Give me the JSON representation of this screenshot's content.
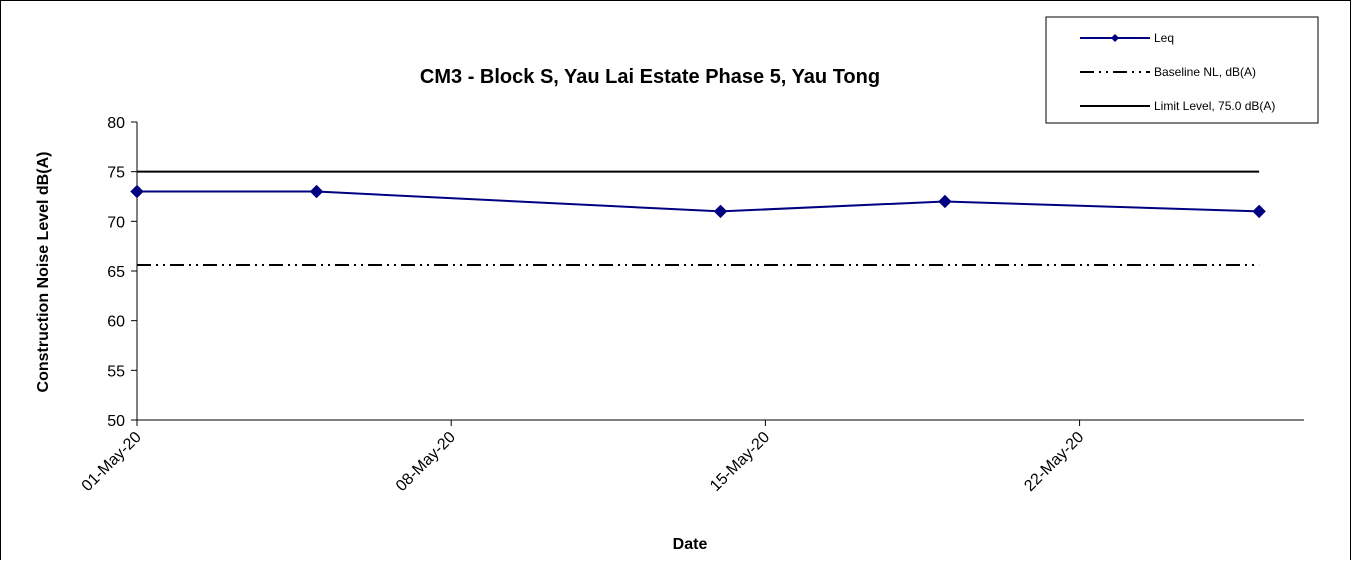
{
  "chart_data": {
    "type": "line",
    "title": "CM3 - Block S, Yau Lai Estate Phase 5, Yau Tong",
    "xlabel": "Date",
    "ylabel": "Construction Noise Level  dB(A)",
    "ylim": [
      50,
      80
    ],
    "yticks": [
      50,
      55,
      60,
      65,
      70,
      75,
      80
    ],
    "xlim": [
      "2020-05-01",
      "2020-05-27"
    ],
    "xtick_labels": [
      "01-May-20",
      "08-May-20",
      "15-May-20",
      "22-May-20"
    ],
    "xtick_dates": [
      "2020-05-01",
      "2020-05-08",
      "2020-05-15",
      "2020-05-22"
    ],
    "grid": false,
    "legend_position": "top-right",
    "series": [
      {
        "name": "Leq",
        "color": "#000080",
        "marker": "diamond",
        "x": [
          "2020-05-01",
          "2020-05-05",
          "2020-05-14",
          "2020-05-19",
          "2020-05-26"
        ],
        "y": [
          73,
          73,
          71,
          72,
          71
        ]
      },
      {
        "name": "Baseline NL, dB(A)",
        "color": "#000000",
        "style": "dash-dot-dot",
        "x": [
          "2020-05-01",
          "2020-05-26"
        ],
        "y": [
          65.6,
          65.6
        ]
      },
      {
        "name": "Limit Level, 75.0 dB(A)",
        "color": "#000000",
        "style": "solid",
        "x": [
          "2020-05-01",
          "2020-05-26"
        ],
        "y": [
          75,
          75
        ]
      }
    ]
  }
}
